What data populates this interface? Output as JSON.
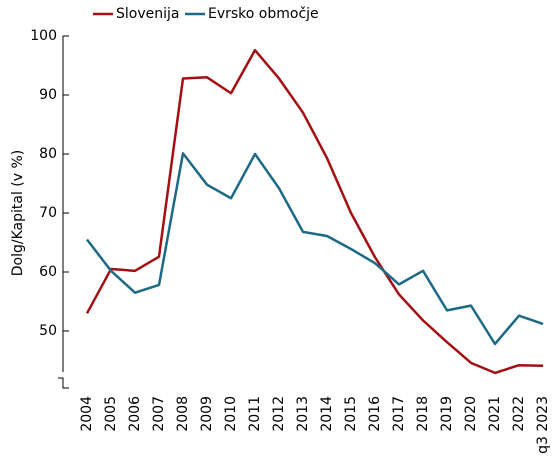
{
  "chart_data": {
    "type": "line",
    "y_label": "Dolg/Kapital (v %)",
    "categories": [
      "2004",
      "2005",
      "2006",
      "2007",
      "2008",
      "2009",
      "2010",
      "2011",
      "2012",
      "2013",
      "2014",
      "2015",
      "2016",
      "2017",
      "2018",
      "2019",
      "2020",
      "2021",
      "2022",
      "q3 2023"
    ],
    "series": [
      {
        "name": "Slovenija",
        "color": "#a30f12",
        "values": [
          53,
          60.5,
          60.2,
          62.6,
          92.8,
          93,
          90.3,
          97.6,
          92.8,
          87,
          79.3,
          70,
          62.5,
          56.2,
          51.8,
          48.1,
          44.6,
          42.9,
          44.2,
          44.1
        ]
      },
      {
        "name": "Evrsko območje",
        "color": "#1d6a86",
        "values": [
          65.5,
          60.2,
          56.5,
          57.8,
          80.1,
          74.8,
          72.5,
          80,
          74.2,
          66.8,
          66.1,
          63.9,
          61.5,
          57.9,
          60.2,
          53.5,
          54.3,
          47.8,
          52.6,
          51.2
        ]
      }
    ],
    "ylim": [
      40,
      100
    ],
    "yticks": [
      50,
      60,
      70,
      80,
      90,
      100
    ],
    "legend": "top"
  }
}
